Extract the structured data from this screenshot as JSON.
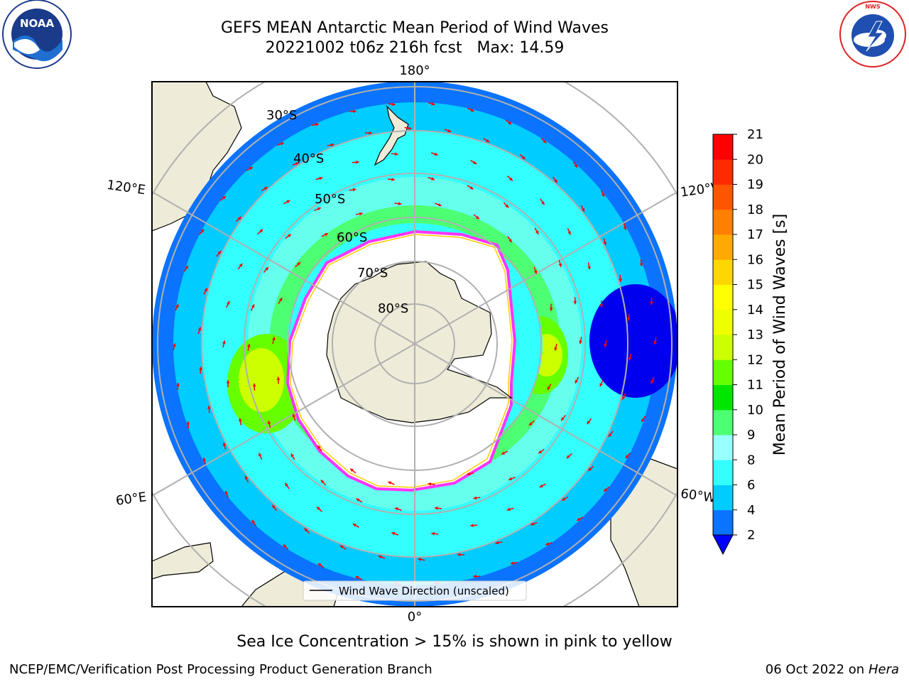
{
  "header": {
    "title_line1": "GEFS MEAN Antarctic Mean Period of Wind Waves",
    "title_line2": "20221002 t06z 216h fcst   Max: 14.59"
  },
  "logos": {
    "left": "NOAA",
    "left_ring_text": "NATIONAL OCEANIC AND ATMOSPHERIC ADMINISTRATION · U.S. DEPARTMENT OF COMMERCE",
    "right_ring_text": "NATIONAL WEATHER SERVICE"
  },
  "map": {
    "lon_labels": {
      "top": "180°",
      "bottom": "0°",
      "left_upper": "120°E",
      "left_lower": "60°E",
      "right_upper": "120°W",
      "right_lower": "60°W"
    },
    "lat_labels": [
      "30°S",
      "40°S",
      "50°S",
      "60°S",
      "70°S",
      "80°S"
    ],
    "legend_label": "Wind Wave Direction (unscaled)",
    "colors": {
      "land": "#eeecd8",
      "ice": "#ffffff",
      "ice_edge": [
        "#ff33ff",
        "#ff9900",
        "#ffff00"
      ],
      "arrow": "#ff0000",
      "grid": "#b0b0b0"
    }
  },
  "colorbar": {
    "label": "Mean Period of Wind Waves [s]",
    "ticks": [
      "2",
      "4",
      "6",
      "8",
      "9",
      "10",
      "11",
      "12",
      "13",
      "14",
      "15",
      "16",
      "17",
      "18",
      "19",
      "20",
      "21"
    ],
    "colors": [
      "#0a73ff",
      "#00ccff",
      "#33ffff",
      "#99ffff",
      "#4cff73",
      "#00e600",
      "#66ff00",
      "#ccff00",
      "#eeff00",
      "#ffff00",
      "#ffd700",
      "#ffaa00",
      "#ff8000",
      "#ff5500",
      "#ff2a00",
      "#ff0000"
    ],
    "extend_color": "#0000ff"
  },
  "footer": {
    "note": "Sea Ice Concentration > 15% is shown in pink to yellow",
    "credit_left": "NCEP/EMC/Verification Post Processing Product Generation Branch",
    "credit_right_date": "06 Oct 2022 on ",
    "credit_right_machine": "Hera"
  }
}
